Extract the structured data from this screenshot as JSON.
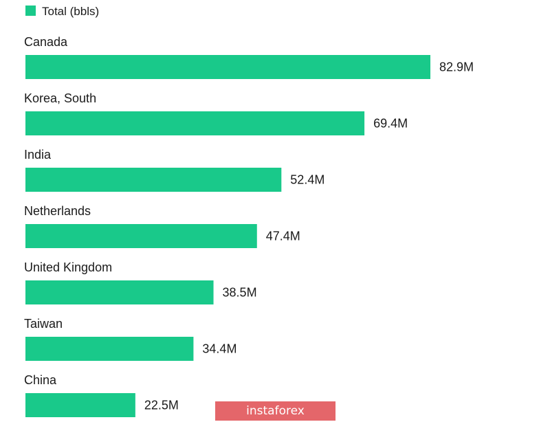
{
  "chart_data": {
    "type": "bar",
    "orientation": "horizontal",
    "legend": {
      "label": "Total (bbls)",
      "placement": "top-left"
    },
    "series_color": "#19c98a",
    "categories": [
      "Canada",
      "Korea, South",
      "India",
      "Netherlands",
      "United Kingdom",
      "Taiwan",
      "China"
    ],
    "values": [
      82.9,
      69.4,
      52.4,
      47.4,
      38.5,
      34.4,
      22.5
    ],
    "value_labels": [
      "82.9M",
      "69.4M",
      "52.4M",
      "47.4M",
      "38.5M",
      "34.4M",
      "22.5M"
    ],
    "unit": "M",
    "xlim": [
      0,
      82.9
    ],
    "grid": false
  },
  "watermark": {
    "text": "instaforex",
    "color": "#e4666a"
  }
}
